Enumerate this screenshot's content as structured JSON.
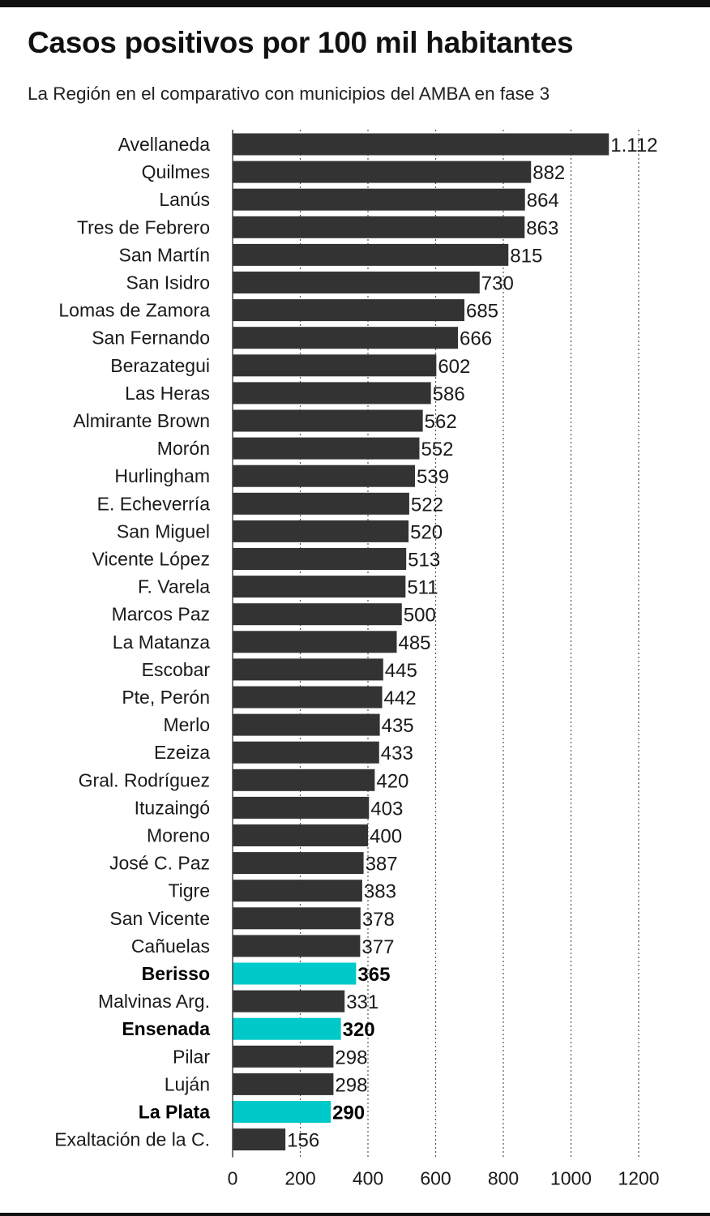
{
  "header": {
    "title": "Casos positivos por 100 mil habitantes",
    "subtitle": "La Región en el comparativo con municipios del AMBA en fase 3"
  },
  "colors": {
    "bar": "#333333",
    "highlight": "#00c9c9",
    "grid": "#555555"
  },
  "chart_data": {
    "type": "bar",
    "orientation": "horizontal",
    "title": "Casos positivos por 100 mil habitantes",
    "subtitle": "La Región en el comparativo con municipios del AMBA en fase 3",
    "xlim": [
      0,
      1200
    ],
    "x_ticks": [
      "0",
      "200",
      "400",
      "600",
      "800",
      "1000",
      "1200"
    ],
    "grid": "vertical dotted",
    "categories": [
      "Avellaneda",
      "Quilmes",
      "Lanús",
      "Tres de Febrero",
      "San Martín",
      "San Isidro",
      "Lomas de Zamora",
      "San Fernando",
      "Berazategui",
      "Las Heras",
      "Almirante Brown",
      "Morón",
      "Hurlingham",
      "E. Echeverría",
      "San Miguel",
      "Vicente López",
      "F. Varela",
      "Marcos Paz",
      "La Matanza",
      "Escobar",
      "Pte, Perón",
      "Merlo",
      "Ezeiza",
      "Gral. Rodríguez",
      "Ituzaingó",
      "Moreno",
      "José C. Paz",
      "Tigre",
      "San Vicente",
      "Cañuelas",
      "Berisso",
      "Malvinas Arg.",
      "Ensenada",
      "Pilar",
      "Luján",
      "La Plata",
      "Exaltación de la C."
    ],
    "values": [
      1112,
      882,
      864,
      863,
      815,
      730,
      685,
      666,
      602,
      586,
      562,
      552,
      539,
      522,
      520,
      513,
      511,
      500,
      485,
      445,
      442,
      435,
      433,
      420,
      403,
      400,
      387,
      383,
      378,
      377,
      365,
      331,
      320,
      298,
      298,
      290,
      156
    ],
    "value_labels": [
      "1.112",
      "882",
      "864",
      "863",
      "815",
      "730",
      "685",
      "666",
      "602",
      "586",
      "562",
      "552",
      "539",
      "522",
      "520",
      "513",
      "511",
      "500",
      "485",
      "445",
      "442",
      "435",
      "433",
      "420",
      "403",
      "400",
      "387",
      "383",
      "378",
      "377",
      "365",
      "331",
      "320",
      "298",
      "298",
      "290",
      "156"
    ],
    "highlighted": [
      "Berisso",
      "Ensenada",
      "La Plata"
    ]
  }
}
